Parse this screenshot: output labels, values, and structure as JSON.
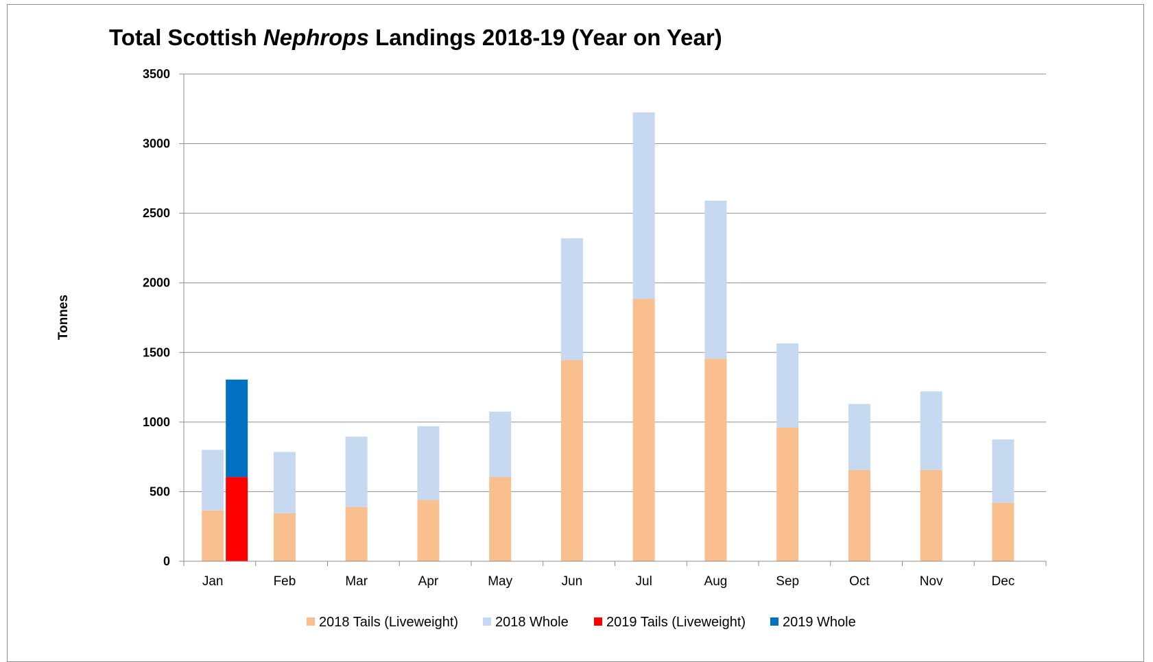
{
  "chart_data": {
    "type": "bar",
    "stacked": true,
    "title_parts": [
      "Total Scottish ",
      "Nephrops",
      " Landings 2018-19 (Year on Year)"
    ],
    "ylabel": "Tonnes",
    "xlabel": "",
    "ylim": [
      0,
      3500
    ],
    "yticks": [
      "0",
      "500",
      "1000",
      "1500",
      "2000",
      "2500",
      "3000",
      "3500"
    ],
    "grid": true,
    "legend_position": "bottom",
    "categories": [
      "Jan",
      "Feb",
      "Mar",
      "Apr",
      "May",
      "Jun",
      "Jul",
      "Aug",
      "Sep",
      "Oct",
      "Nov",
      "Dec"
    ],
    "series": [
      {
        "name": "2018 Tails (Liveweight)",
        "color": "#F9BF8F",
        "stack": "2018",
        "values": [
          365,
          345,
          390,
          440,
          605,
          1445,
          1885,
          1455,
          960,
          655,
          655,
          420
        ]
      },
      {
        "name": "2018 Whole",
        "color": "#C6D9F0",
        "stack": "2018",
        "values": [
          435,
          440,
          505,
          530,
          470,
          875,
          1340,
          1135,
          605,
          475,
          565,
          455
        ]
      },
      {
        "name": "2019 Tails (Liveweight)",
        "color": "#FF0000",
        "stack": "2019",
        "values": [
          605,
          null,
          null,
          null,
          null,
          null,
          null,
          null,
          null,
          null,
          null,
          null
        ]
      },
      {
        "name": "2019 Whole",
        "color": "#0070C0",
        "stack": "2019",
        "values": [
          700,
          null,
          null,
          null,
          null,
          null,
          null,
          null,
          null,
          null,
          null,
          null
        ]
      }
    ]
  }
}
